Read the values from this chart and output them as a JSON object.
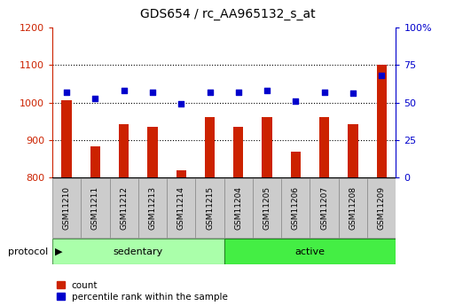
{
  "title": "GDS654 / rc_AA965132_s_at",
  "samples": [
    "GSM11210",
    "GSM11211",
    "GSM11212",
    "GSM11213",
    "GSM11214",
    "GSM11215",
    "GSM11204",
    "GSM11205",
    "GSM11206",
    "GSM11207",
    "GSM11208",
    "GSM11209"
  ],
  "count_values": [
    1005,
    882,
    942,
    936,
    818,
    962,
    934,
    962,
    868,
    962,
    942,
    1101
  ],
  "percentile_values": [
    57,
    53,
    58,
    57,
    49,
    57,
    57,
    58,
    51,
    57,
    56,
    68
  ],
  "groups": {
    "sedentary": [
      0,
      1,
      2,
      3,
      4,
      5
    ],
    "active": [
      6,
      7,
      8,
      9,
      10,
      11
    ]
  },
  "count_color": "#cc2200",
  "percentile_color": "#0000cc",
  "sedentary_color": "#aaffaa",
  "active_color": "#44ee44",
  "label_bg_color": "#cccccc",
  "label_border_color": "#888888",
  "ylim_left": [
    800,
    1200
  ],
  "ylim_right": [
    0,
    100
  ],
  "yticks_left": [
    800,
    900,
    1000,
    1100,
    1200
  ],
  "yticks_right": [
    0,
    25,
    50,
    75,
    100
  ],
  "grid_lines": [
    900,
    1000,
    1100
  ],
  "bar_width": 0.35,
  "background_color": "#ffffff"
}
